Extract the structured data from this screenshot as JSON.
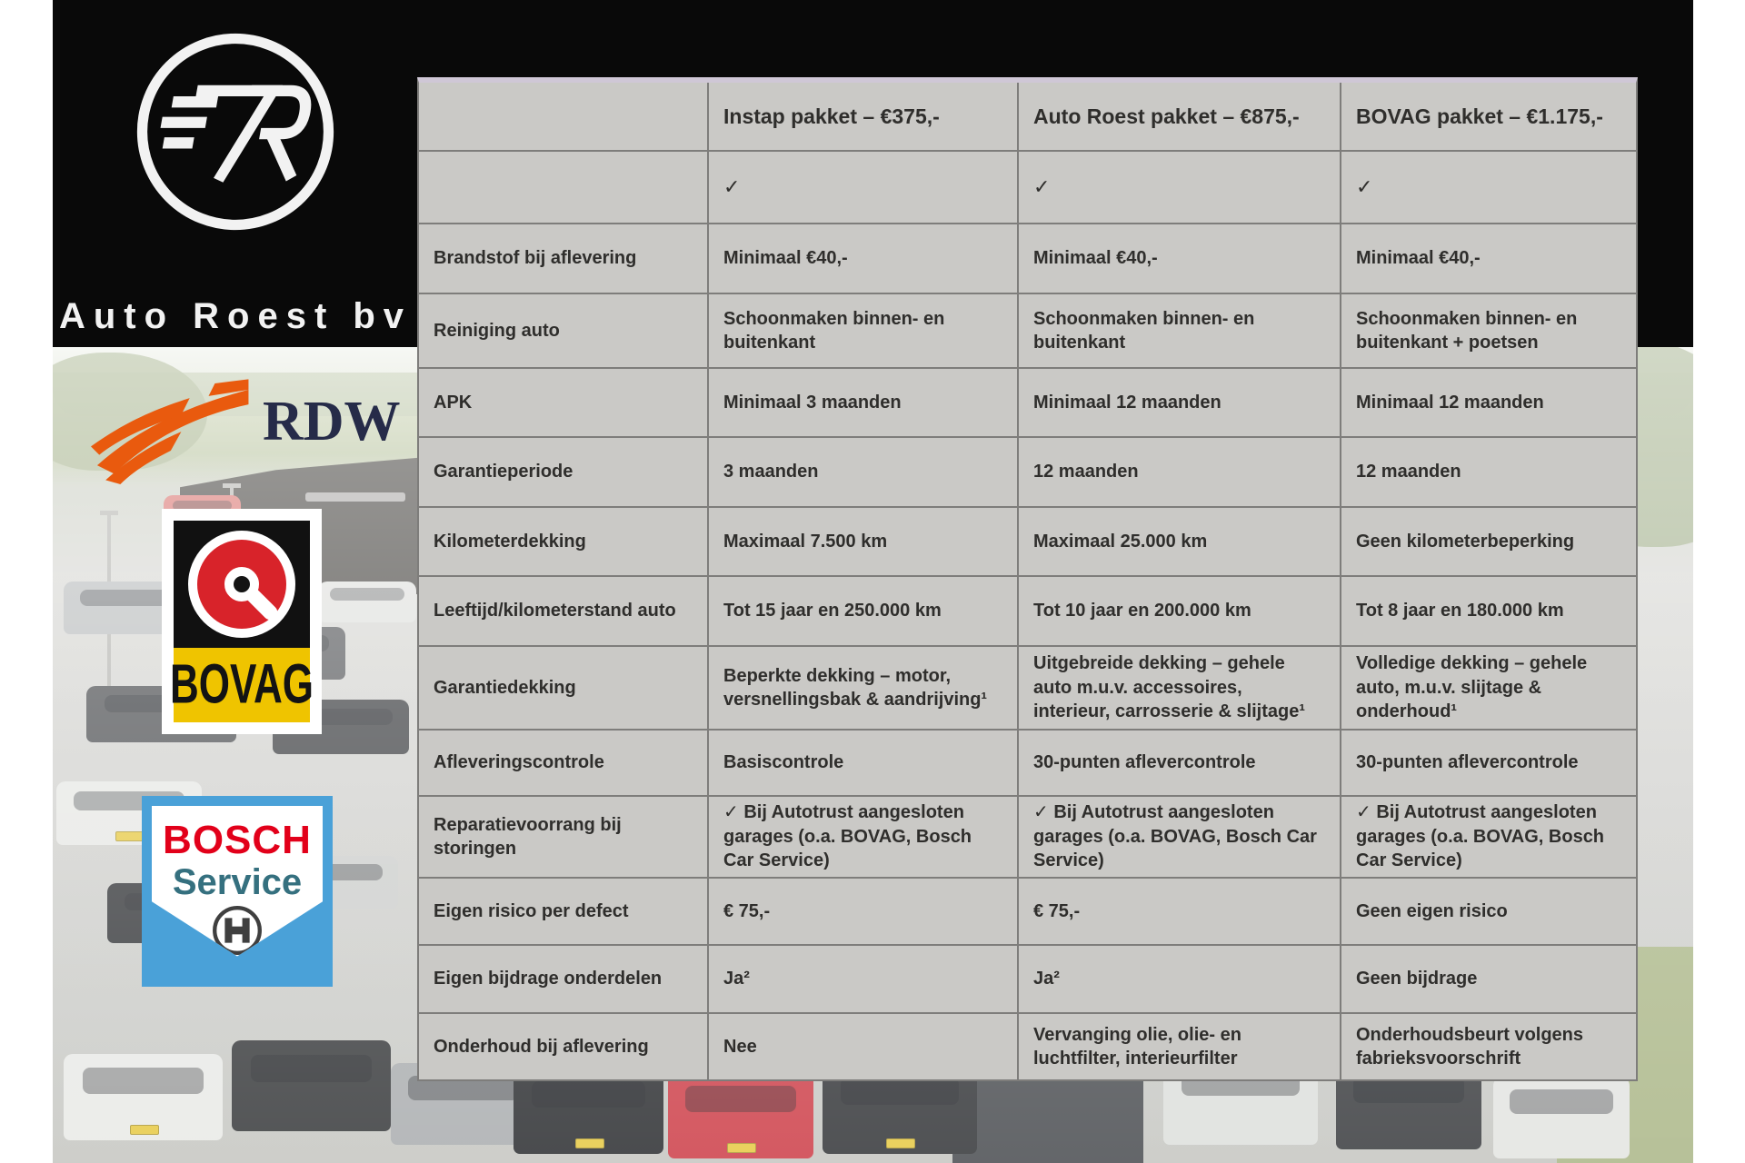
{
  "brand": {
    "name": "Auto Roest bv"
  },
  "badges": {
    "rdw": {
      "label": "RDW"
    },
    "bovag": {
      "label": "BOVAG"
    },
    "bosch": {
      "line1": "BOSCH",
      "line2": "Service"
    }
  },
  "table": {
    "columns": [
      "",
      "Instap pakket – €375,-",
      "Auto Roest pakket – €875,-",
      "BOVAG pakket – €1.175,-"
    ],
    "check_row": [
      "",
      "✓",
      "✓",
      "✓"
    ],
    "rows": [
      {
        "label": "Brandstof bij aflevering",
        "cells": [
          "Minimaal €40,-",
          "Minimaal €40,-",
          "Minimaal €40,-"
        ]
      },
      {
        "label": "Reiniging auto",
        "cells": [
          "Schoonmaken binnen- en buitenkant",
          "Schoonmaken binnen- en buitenkant",
          "Schoonmaken binnen- en buitenkant + poetsen"
        ]
      },
      {
        "label": "APK",
        "cells": [
          "Minimaal 3 maanden",
          "Minimaal 12 maanden",
          "Minimaal 12 maanden"
        ]
      },
      {
        "label": "Garantieperiode",
        "cells": [
          "3 maanden",
          "12 maanden",
          "12 maanden"
        ]
      },
      {
        "label": "Kilometerdekking",
        "cells": [
          "Maximaal 7.500 km",
          "Maximaal 25.000 km",
          "Geen kilometerbeperking"
        ]
      },
      {
        "label": "Leeftijd/kilometerstand auto",
        "cells": [
          "Tot 15 jaar en 250.000 km",
          "Tot 10 jaar en 200.000 km",
          "Tot 8 jaar en 180.000 km"
        ]
      },
      {
        "label": "Garantiedekking",
        "cells": [
          "Beperkte dekking – motor, versnellingsbak & aandrijving¹",
          "Uitgebreide dekking – gehele auto m.u.v. accessoires, interieur, carrosserie & slijtage¹",
          "Volledige dekking – gehele auto, m.u.v. slijtage & onderhoud¹"
        ]
      },
      {
        "label": "Afleveringscontrole",
        "cells": [
          "Basiscontrole",
          "30-punten aflevercontrole",
          "30-punten aflevercontrole"
        ]
      },
      {
        "label": "Reparatievoorrang bij storingen",
        "cells": [
          "✓ Bij Autotrust aangesloten garages (o.a. BOVAG, Bosch Car Service)",
          "✓ Bij Autotrust aangesloten garages (o.a. BOVAG, Bosch Car Service)",
          "✓ Bij Autotrust aangesloten garages (o.a. BOVAG, Bosch Car Service)"
        ]
      },
      {
        "label": "Eigen risico per defect",
        "cells": [
          "€ 75,-",
          "€ 75,-",
          "Geen eigen risico"
        ]
      },
      {
        "label": "Eigen bijdrage onderdelen",
        "cells": [
          "Ja²",
          "Ja²",
          "Geen bijdrage"
        ]
      },
      {
        "label": "Onderhoud bij aflevering",
        "cells": [
          "Nee",
          "Vervanging olie, olie- en luchtfilter, interieurfilter",
          "Onderhoudsbeurt volgens fabrieksvoorschrift"
        ]
      }
    ]
  },
  "colors": {
    "table_bg": "#cac9c6",
    "header_accent": "#cfc7d6",
    "rdw_orange": "#e95a0e",
    "rdw_navy": "#262b49",
    "bovag_red": "#d8232a",
    "bovag_yellow": "#efc400",
    "bosch_red": "#e2001a",
    "bosch_blue": "#4aa1d8",
    "bosch_teal": "#35707f"
  }
}
